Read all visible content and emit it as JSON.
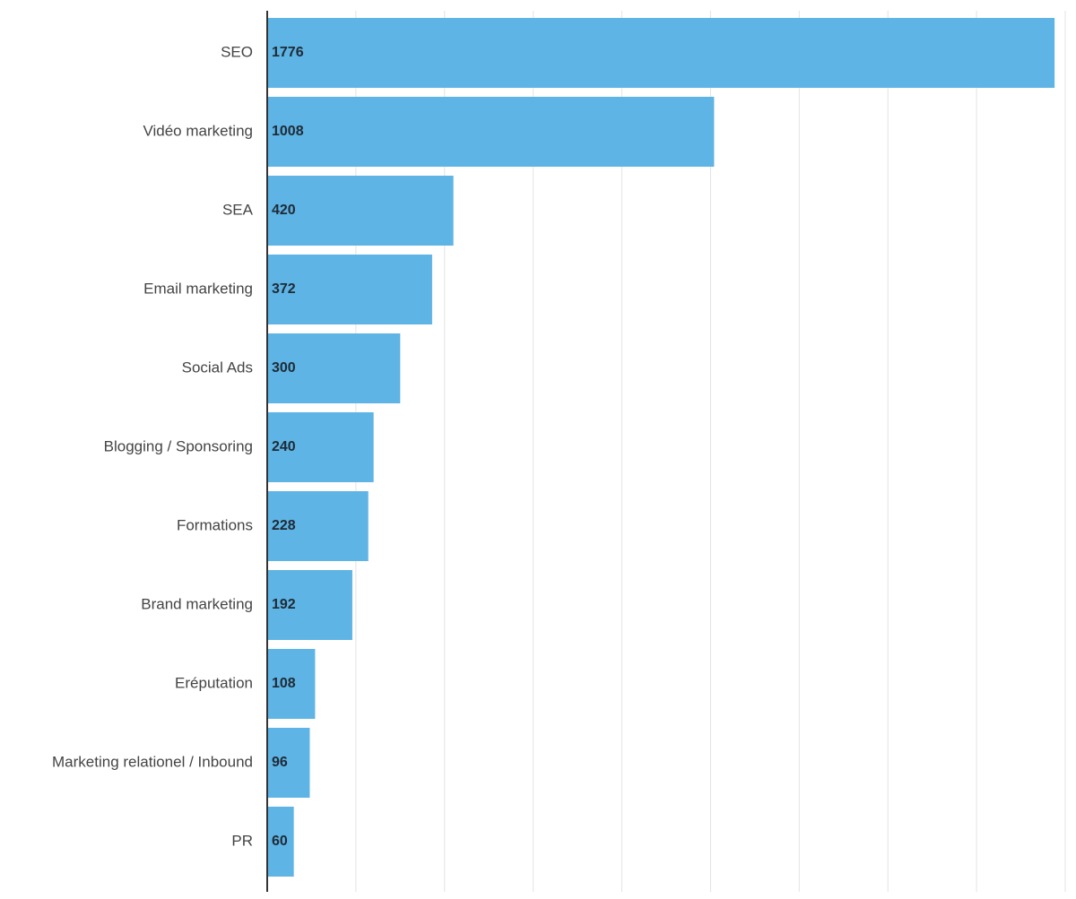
{
  "chart_data": {
    "type": "bar",
    "orientation": "horizontal",
    "categories": [
      "SEO",
      "Vidéo marketing",
      "SEA",
      "Email marketing",
      "Social Ads",
      "Blogging / Sponsoring",
      "Formations",
      "Brand marketing",
      "Eréputation",
      "Marketing relationel / Inbound",
      "PR"
    ],
    "values": [
      1776,
      1008,
      420,
      372,
      300,
      240,
      228,
      192,
      108,
      96,
      60
    ],
    "title": "",
    "xlabel": "",
    "ylabel": "",
    "xlim": [
      0,
      1800
    ],
    "grid": true,
    "bar_color": "#5eb4e4",
    "axis_color": "#333333",
    "grid_color": "#e3e3e3"
  }
}
